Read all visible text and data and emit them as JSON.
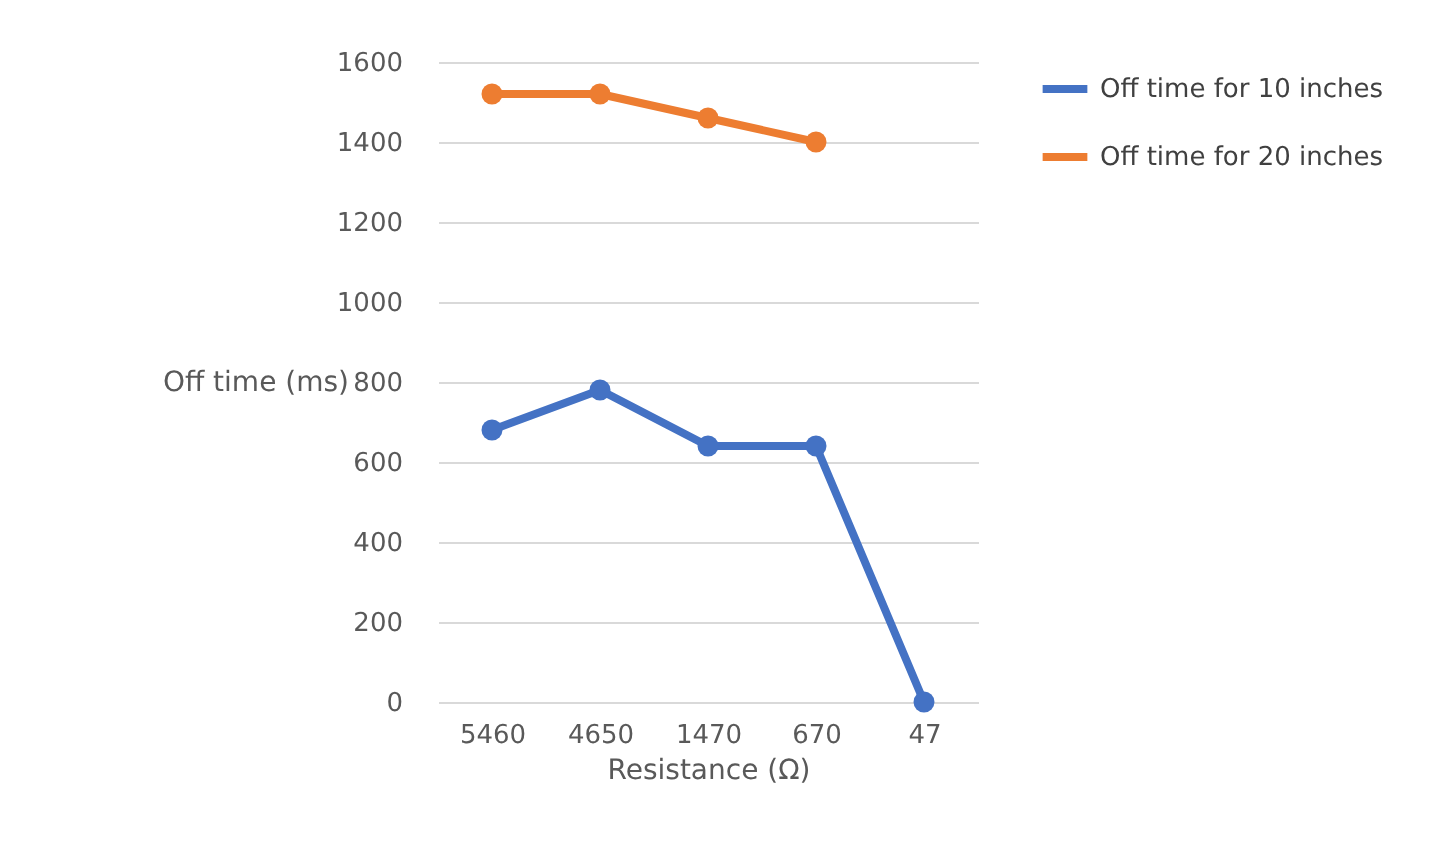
{
  "chart_data": {
    "type": "line",
    "xlabel": "Resistance (Ω)",
    "ylabel": "Off time (ms)",
    "categories": [
      "5460",
      "4650",
      "1470",
      "670",
      "47"
    ],
    "series": [
      {
        "name": "Off time for 10 inches",
        "color": "#4472c4",
        "values": [
          680,
          780,
          640,
          640,
          0
        ]
      },
      {
        "name": "Off time for 20 inches",
        "color": "#ed7d31",
        "values": [
          1520,
          1520,
          1460,
          1400,
          null
        ]
      }
    ],
    "ylim": [
      0,
      1600
    ],
    "yticks": [
      0,
      200,
      400,
      600,
      800,
      1000,
      1200,
      1400,
      1600
    ],
    "grid": "y",
    "legend": "right",
    "marker": "circle",
    "line_style": "solid"
  }
}
